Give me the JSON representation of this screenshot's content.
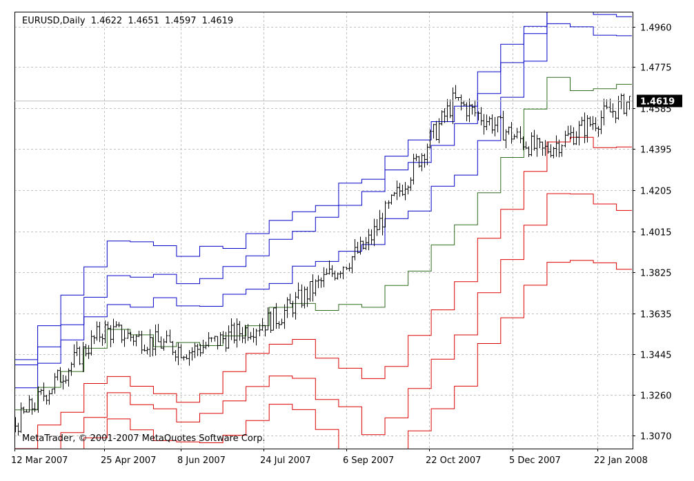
{
  "header": {
    "symbol": "EURUSD,Daily",
    "open": "1.4622",
    "high": "1.4651",
    "low": "1.4597",
    "close": "1.4619"
  },
  "copyright": "MetaTrader, © 2001-2007 MetaQuotes Software Corp.",
  "price_tag": "1.4619",
  "colors": {
    "background": "#ffffff",
    "grid": "#c0c0c0",
    "price_bars": "#000000",
    "middle_line": "#2e6b1e",
    "upper_bands": "#0000c8",
    "lower_bands": "#dd0000",
    "price_tag_bg": "#000000",
    "price_tag_text": "#ffffff"
  },
  "chart_data": {
    "type": "line",
    "title": "EURUSD,Daily",
    "ylim": [
      1.301,
      1.503
    ],
    "y_ticks": [
      "1.4960",
      "1.4775",
      "1.4585",
      "1.4395",
      "1.4205",
      "1.4015",
      "1.3825",
      "1.3635",
      "1.3445",
      "1.3260",
      "1.3070"
    ],
    "x_ticks": [
      "12 Mar 2007",
      "25 Apr 2007",
      "8 Jun 2007",
      "24 Jul 2007",
      "6 Sep 2007",
      "22 Oct 2007",
      "5 Dec 2007",
      "22 Jan 2008"
    ],
    "grid": true,
    "current_price": 1.4619,
    "ohlc": {
      "x": [
        "12 Mar 2007",
        "25 Apr 2007",
        "8 Jun 2007",
        "24 Jul 2007",
        "6 Sep 2007",
        "22 Oct 2007",
        "5 Dec 2007",
        "22 Jan 2008"
      ],
      "close": [
        1.312,
        1.356,
        1.346,
        1.362,
        1.395,
        1.462,
        1.438,
        1.4619
      ]
    },
    "series": [
      {
        "role": "middle",
        "color": "#2e6b1e",
        "x": [
          "12 Mar 2007",
          "25 Apr 2007",
          "8 Jun 2007",
          "24 Jul 2007",
          "6 Sep 2007",
          "22 Oct 2007",
          "5 Dec 2007",
          "22 Jan 2008"
        ],
        "values": [
          1.319,
          1.357,
          1.346,
          1.367,
          1.368,
          1.405,
          1.47,
          1.466
        ]
      },
      {
        "role": "upper-1",
        "color": "#0000c8",
        "x": [
          "12 Mar 2007",
          "25 Apr 2007",
          "8 Jun 2007",
          "24 Jul 2007",
          "6 Sep 2007",
          "22 Oct 2007",
          "5 Dec 2007",
          "22 Jan 2008"
        ],
        "values": [
          1.331,
          1.369,
          1.367,
          1.381,
          1.399,
          1.428,
          1.496,
          1.493
        ]
      },
      {
        "role": "upper-2",
        "color": "#0000c8",
        "x": [
          "12 Mar 2007",
          "25 Apr 2007",
          "8 Jun 2007",
          "24 Jul 2007",
          "6 Sep 2007",
          "22 Oct 2007",
          "5 Dec 2007",
          "22 Jan 2008"
        ],
        "values": [
          1.34,
          1.38,
          1.378,
          1.398,
          1.423,
          1.45,
          1.502,
          1.5
        ]
      },
      {
        "role": "upper-3",
        "color": "#0000c8",
        "x": [
          "12 Mar 2007",
          "25 Apr 2007",
          "8 Jun 2007",
          "24 Jul 2007",
          "6 Sep 2007",
          "22 Oct 2007",
          "5 Dec 2007",
          "22 Jan 2008"
        ],
        "values": [
          1.345,
          1.398,
          1.39,
          1.408,
          1.427,
          1.462,
          1.508,
          1.507
        ]
      },
      {
        "role": "lower-1",
        "color": "#dd0000",
        "x": [
          "12 Mar 2007",
          "25 Apr 2007",
          "8 Jun 2007",
          "24 Jul 2007",
          "6 Sep 2007",
          "22 Oct 2007",
          "5 Dec 2007",
          "22 Jan 2008"
        ],
        "values": [
          1.3,
          1.337,
          1.323,
          1.355,
          1.332,
          1.38,
          1.446,
          1.44
        ]
      },
      {
        "role": "lower-2",
        "color": "#dd0000",
        "x": [
          "12 Mar 2007",
          "25 Apr 2007",
          "8 Jun 2007",
          "24 Jul 2007",
          "6 Sep 2007",
          "22 Oct 2007",
          "5 Dec 2007",
          "22 Jan 2008"
        ],
        "values": [
          1.29,
          1.326,
          1.312,
          1.339,
          1.308,
          1.357,
          1.419,
          1.41
        ]
      },
      {
        "role": "lower-3",
        "color": "#dd0000",
        "x": [
          "12 Mar 2007",
          "25 Apr 2007",
          "8 Jun 2007",
          "24 Jul 2007",
          "6 Sep 2007",
          "22 Oct 2007",
          "5 Dec 2007",
          "22 Jan 2008"
        ],
        "values": [
          1.28,
          1.313,
          1.299,
          1.323,
          1.285,
          1.333,
          1.388,
          1.383
        ]
      }
    ]
  }
}
